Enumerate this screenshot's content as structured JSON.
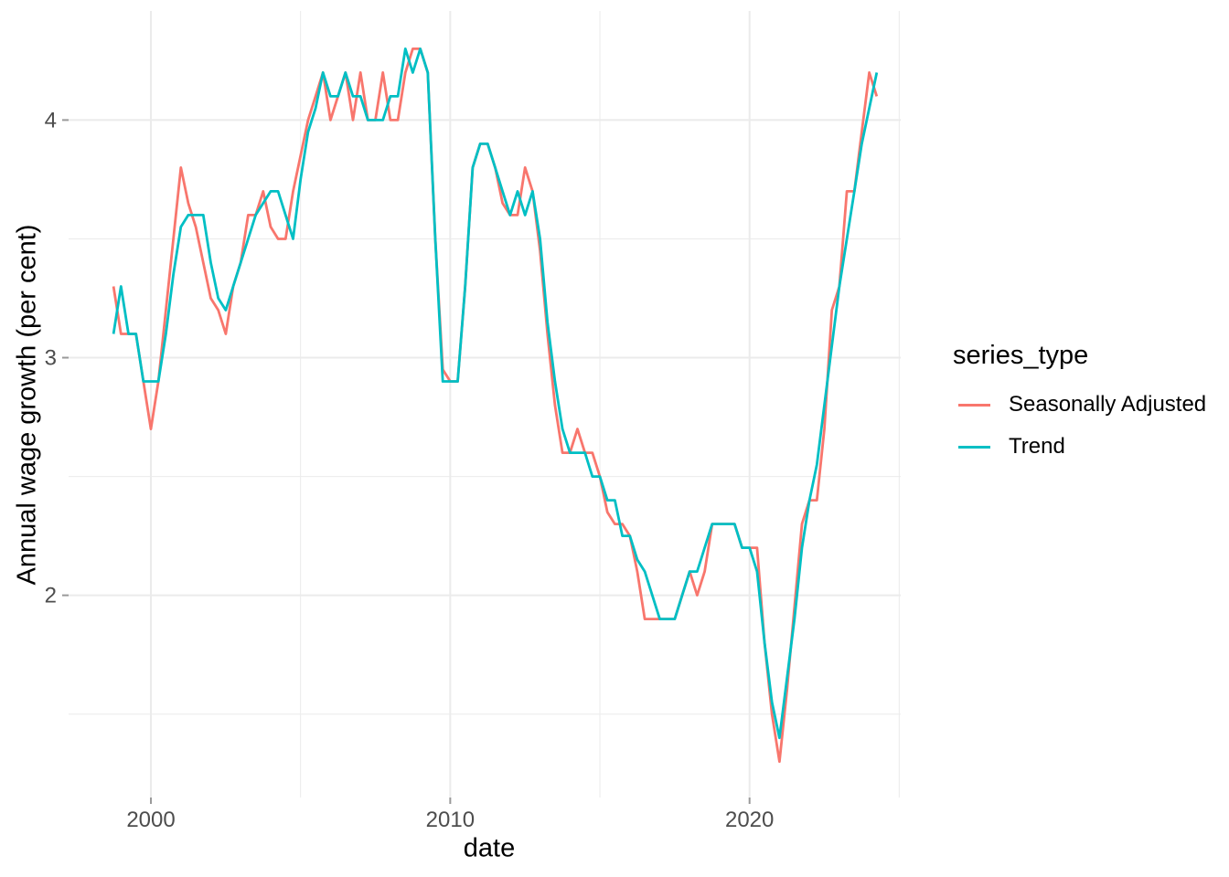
{
  "figure": {
    "background": "#FFFFFF",
    "x_axis": {
      "title": "date",
      "tick_labels": [
        "2000",
        "2010",
        "2020"
      ]
    },
    "y_axis": {
      "title": "Annual wage growth (per cent)",
      "tick_labels": [
        "2",
        "3",
        "4"
      ]
    },
    "legend": {
      "title": "series_type",
      "entries": [
        {
          "label": "Seasonally Adjusted",
          "color": "#F8766D"
        },
        {
          "label": "Trend",
          "color": "#00BFC4"
        }
      ]
    },
    "colors": {
      "grid": "#EBEBEB",
      "tick_text": "#4D4D4D",
      "tick_mark": "#999999",
      "axis_title": "#000000",
      "series_seasonally_adjusted": "#F8766D",
      "series_trend": "#00BFC4"
    }
  },
  "chart_data": {
    "type": "line",
    "title": "",
    "xlabel": "date",
    "ylabel": "Annual wage growth (per cent)",
    "x_unit": "quarter",
    "legend_position": "right",
    "grid": true,
    "xlim": [
      1997.25,
      2025.05
    ],
    "ylim": [
      1.149,
      4.459
    ],
    "x_breaks": [
      2000,
      2010,
      2020
    ],
    "x_minor_breaks": [
      2005,
      2015,
      2025
    ],
    "y_breaks": [
      2,
      3,
      4
    ],
    "y_minor_breaks": [
      1.5,
      2.5,
      3.5
    ],
    "categories": [
      "1998 Q3",
      "1998 Q4",
      "1999 Q1",
      "1999 Q2",
      "1999 Q3",
      "1999 Q4",
      "2000 Q1",
      "2000 Q2",
      "2000 Q3",
      "2000 Q4",
      "2001 Q1",
      "2001 Q2",
      "2001 Q3",
      "2001 Q4",
      "2002 Q1",
      "2002 Q2",
      "2002 Q3",
      "2002 Q4",
      "2003 Q1",
      "2003 Q2",
      "2003 Q3",
      "2003 Q4",
      "2004 Q1",
      "2004 Q2",
      "2004 Q3",
      "2004 Q4",
      "2005 Q1",
      "2005 Q2",
      "2005 Q3",
      "2005 Q4",
      "2006 Q1",
      "2006 Q2",
      "2006 Q3",
      "2006 Q4",
      "2007 Q1",
      "2007 Q2",
      "2007 Q3",
      "2007 Q4",
      "2008 Q1",
      "2008 Q2",
      "2008 Q3",
      "2008 Q4",
      "2009 Q1",
      "2009 Q2",
      "2009 Q3",
      "2009 Q4",
      "2010 Q1",
      "2010 Q2",
      "2010 Q3",
      "2010 Q4",
      "2011 Q1",
      "2011 Q2",
      "2011 Q3",
      "2011 Q4",
      "2012 Q1",
      "2012 Q2",
      "2012 Q3",
      "2012 Q4",
      "2013 Q1",
      "2013 Q2",
      "2013 Q3",
      "2013 Q4",
      "2014 Q1",
      "2014 Q2",
      "2014 Q3",
      "2014 Q4",
      "2015 Q1",
      "2015 Q2",
      "2015 Q3",
      "2015 Q4",
      "2016 Q1",
      "2016 Q2",
      "2016 Q3",
      "2016 Q4",
      "2017 Q1",
      "2017 Q2",
      "2017 Q3",
      "2017 Q4",
      "2018 Q1",
      "2018 Q2",
      "2018 Q3",
      "2018 Q4",
      "2019 Q1",
      "2019 Q2",
      "2019 Q3",
      "2019 Q4",
      "2020 Q1",
      "2020 Q2",
      "2020 Q3",
      "2020 Q4",
      "2021 Q1",
      "2021 Q2",
      "2021 Q3",
      "2021 Q4",
      "2022 Q1",
      "2022 Q2",
      "2022 Q3",
      "2022 Q4",
      "2023 Q1",
      "2023 Q2",
      "2023 Q3",
      "2023 Q4",
      "2024 Q1"
    ],
    "series": [
      {
        "name": "Seasonally Adjusted",
        "color": "#F8766D",
        "values": [
          3.3,
          3.1,
          3.1,
          3.1,
          2.9,
          2.7,
          2.9,
          3.2,
          3.5,
          3.8,
          3.65,
          3.55,
          3.4,
          3.25,
          3.2,
          3.1,
          3.3,
          3.4,
          3.6,
          3.6,
          3.7,
          3.55,
          3.5,
          3.5,
          3.7,
          3.85,
          4.0,
          4.1,
          4.2,
          4.0,
          4.1,
          4.2,
          4.0,
          4.2,
          4.0,
          4.0,
          4.2,
          4.0,
          4.0,
          4.2,
          4.3,
          4.3,
          4.2,
          3.5,
          2.95,
          2.9,
          2.9,
          3.3,
          3.8,
          3.9,
          3.9,
          3.8,
          3.65,
          3.6,
          3.6,
          3.8,
          3.7,
          3.45,
          3.1,
          2.8,
          2.6,
          2.6,
          2.7,
          2.6,
          2.6,
          2.5,
          2.35,
          2.3,
          2.3,
          2.25,
          2.1,
          1.9,
          1.9,
          1.9,
          1.9,
          1.9,
          2.0,
          2.1,
          2.0,
          2.1,
          2.3,
          2.3,
          2.3,
          2.3,
          2.2,
          2.2,
          2.2,
          1.8,
          1.5,
          1.3,
          1.6,
          1.95,
          2.3,
          2.4,
          2.4,
          2.7,
          3.2,
          3.3,
          3.7,
          3.7,
          3.95,
          4.2,
          4.1
        ]
      },
      {
        "name": "Trend",
        "color": "#00BFC4",
        "values": [
          3.1,
          3.3,
          3.1,
          3.1,
          2.9,
          2.9,
          2.9,
          3.1,
          3.35,
          3.55,
          3.6,
          3.6,
          3.6,
          3.4,
          3.25,
          3.2,
          3.3,
          3.4,
          3.5,
          3.6,
          3.65,
          3.7,
          3.7,
          3.6,
          3.5,
          3.75,
          3.95,
          4.05,
          4.2,
          4.1,
          4.1,
          4.2,
          4.1,
          4.1,
          4.0,
          4.0,
          4.0,
          4.1,
          4.1,
          4.3,
          4.2,
          4.3,
          4.2,
          3.5,
          2.9,
          2.9,
          2.9,
          3.3,
          3.8,
          3.9,
          3.9,
          3.8,
          3.7,
          3.6,
          3.7,
          3.6,
          3.7,
          3.5,
          3.15,
          2.9,
          2.7,
          2.6,
          2.6,
          2.6,
          2.5,
          2.5,
          2.4,
          2.4,
          2.25,
          2.25,
          2.15,
          2.1,
          2.0,
          1.9,
          1.9,
          1.9,
          2.0,
          2.1,
          2.1,
          2.2,
          2.3,
          2.3,
          2.3,
          2.3,
          2.2,
          2.2,
          2.1,
          1.8,
          1.55,
          1.4,
          1.65,
          1.9,
          2.2,
          2.4,
          2.55,
          2.8,
          3.05,
          3.3,
          3.5,
          3.7,
          3.9,
          4.05,
          4.2
        ]
      }
    ]
  }
}
